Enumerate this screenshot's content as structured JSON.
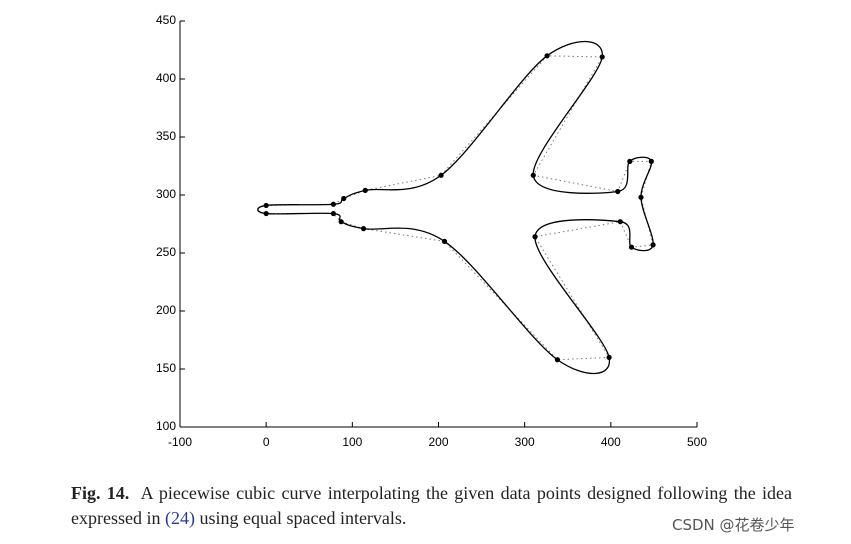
{
  "chart_data": {
    "type": "scatter",
    "series": [
      {
        "x": [
          0,
          78,
          90,
          115,
          203,
          326,
          390,
          310,
          408,
          422,
          447,
          435,
          449,
          424,
          411,
          312,
          398,
          338,
          207,
          113,
          87,
          78,
          0
        ],
        "values": [
          291,
          292,
          297,
          304,
          317,
          420,
          419,
          317,
          303,
          329,
          329,
          298,
          257,
          255,
          277,
          264,
          160,
          158,
          260,
          271,
          277,
          284,
          284
        ],
        "color": "#000000"
      }
    ],
    "xlim": [
      -100,
      500
    ],
    "xticks": [
      -100,
      0,
      100,
      200,
      300,
      400,
      500
    ],
    "ylim": [
      100,
      450
    ],
    "yticks": [
      100,
      150,
      200,
      250,
      300,
      350,
      400,
      450
    ]
  },
  "caption": {
    "label": "Fig. 14.",
    "text_before": "A piecewise cubic curve interpolating the given data points designed following the idea expressed in",
    "reference": "(24)",
    "text_after": "using equal spaced intervals."
  },
  "watermark": "CSDN @花卷少年"
}
